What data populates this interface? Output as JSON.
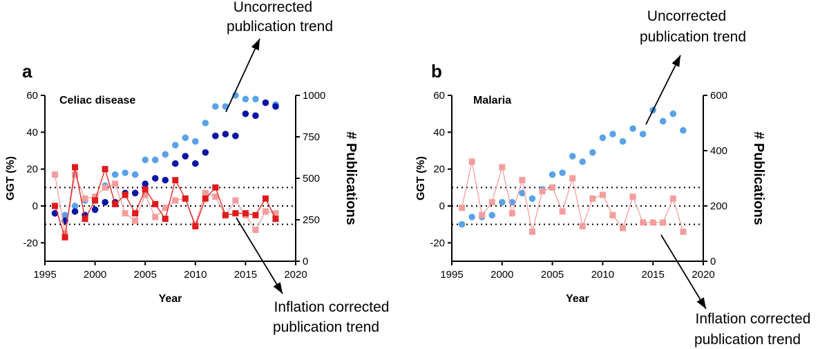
{
  "colors": {
    "light_blue": "#5aa2e8",
    "dark_blue": "#0a16a3",
    "red": "#e01b1b",
    "pink": "#f49d9d"
  },
  "chart_data": [
    {
      "type": "scatter",
      "panel_label": "a",
      "title": "Celiac disease",
      "xlabel": "Year",
      "ylabel": "GGT (%)",
      "ylabel_right": "# Publications",
      "xlim": [
        1995,
        2020
      ],
      "ylim": [
        -30,
        60
      ],
      "ylim_right": [
        0,
        1000
      ],
      "xticks": [
        "1995",
        "2000",
        "2005",
        "2010",
        "2015",
        "2020"
      ],
      "yticks": [
        "-20",
        "0",
        "20",
        "40",
        "60"
      ],
      "yticks_right": [
        "0",
        "250",
        "500",
        "750",
        "1000"
      ],
      "reference_lines": [
        10,
        0,
        -10
      ],
      "annotation_top": [
        "Uncorrected",
        "publication trend"
      ],
      "annotation_bottom": [
        "Inflation corrected",
        "publication trend"
      ],
      "series": [
        {
          "marker": "circle",
          "color": "light_blue",
          "x": [
            1996,
            1997,
            1998,
            1999,
            2000,
            2001,
            2002,
            2003,
            2004,
            2005,
            2006,
            2007,
            2008,
            2009,
            2010,
            2011,
            2012,
            2013,
            2014,
            2015,
            2016,
            2017,
            2018
          ],
          "y": [
            -4,
            -5,
            0,
            3,
            5,
            11,
            17,
            18,
            17,
            25,
            25,
            28,
            33,
            37,
            35,
            45,
            54,
            54,
            60,
            58,
            58,
            56,
            55
          ]
        },
        {
          "marker": "circle",
          "color": "dark_blue",
          "x": [
            1996,
            1997,
            1998,
            1999,
            2000,
            2001,
            2002,
            2003,
            2004,
            2005,
            2006,
            2007,
            2008,
            2009,
            2010,
            2011,
            2012,
            2013,
            2014,
            2015,
            2016,
            2017,
            2018
          ],
          "y": [
            -4,
            -8,
            -3,
            -5,
            -2,
            2,
            2,
            7,
            7,
            12,
            15,
            14,
            23,
            27,
            23,
            29,
            38,
            39,
            38,
            50,
            49,
            56,
            54
          ]
        },
        {
          "marker": "square",
          "color": "pink",
          "line": true,
          "x": [
            1996,
            1997,
            1998,
            1999,
            2000,
            2001,
            2002,
            2003,
            2004,
            2005,
            2006,
            2007,
            2008,
            2009,
            2010,
            2011,
            2012,
            2013,
            2014,
            2015,
            2016,
            2017,
            2018
          ],
          "y": [
            17,
            -15,
            17,
            4,
            5,
            10,
            12,
            -4,
            -8,
            6,
            -6,
            -1,
            3,
            4,
            -10,
            7,
            5,
            -5,
            3,
            -5,
            -13,
            -3,
            -4
          ]
        },
        {
          "marker": "square",
          "color": "red",
          "line": true,
          "x": [
            1996,
            1997,
            1998,
            1999,
            2000,
            2001,
            2002,
            2003,
            2004,
            2005,
            2006,
            2007,
            2008,
            2009,
            2010,
            2011,
            2012,
            2013,
            2014,
            2015,
            2016,
            2017,
            2018
          ],
          "y": [
            0,
            -17,
            21,
            -7,
            3,
            20,
            1,
            6,
            -4,
            9,
            1,
            -7,
            14,
            4,
            -11,
            4,
            10,
            -5,
            -4,
            -4,
            -5,
            4,
            -7
          ]
        }
      ]
    },
    {
      "type": "scatter",
      "panel_label": "b",
      "title": "Malaria",
      "xlabel": "Year",
      "ylabel": "GGT (%)",
      "ylabel_right": "# Publications",
      "xlim": [
        1995,
        2020
      ],
      "ylim": [
        -30,
        60
      ],
      "ylim_right": [
        0,
        600
      ],
      "xticks": [
        "1995",
        "2000",
        "2005",
        "2010",
        "2015",
        "2020"
      ],
      "yticks": [
        "-20",
        "0",
        "20",
        "40",
        "60"
      ],
      "yticks_right": [
        "0",
        "200",
        "400",
        "600"
      ],
      "reference_lines": [
        10,
        0,
        -10
      ],
      "annotation_top": [
        "Uncorrected",
        "publication trend"
      ],
      "annotation_bottom": [
        "Inflation corrected",
        "publication trend"
      ],
      "series": [
        {
          "marker": "circle",
          "color": "light_blue",
          "x": [
            1996,
            1997,
            1998,
            1999,
            2000,
            2001,
            2002,
            2003,
            2004,
            2005,
            2006,
            2007,
            2008,
            2009,
            2010,
            2011,
            2012,
            2013,
            2014,
            2015,
            2016,
            2017,
            2018
          ],
          "y": [
            -10,
            -6,
            -6,
            -5,
            2,
            2,
            7,
            4,
            9,
            17,
            18,
            27,
            24,
            29,
            37,
            39,
            35,
            42,
            39,
            52,
            46,
            50,
            41
          ]
        },
        {
          "marker": "square",
          "color": "pink",
          "line": true,
          "x": [
            1996,
            1997,
            1998,
            1999,
            2000,
            2001,
            2002,
            2003,
            2004,
            2005,
            2006,
            2007,
            2008,
            2009,
            2010,
            2011,
            2012,
            2013,
            2014,
            2015,
            2016,
            2017,
            2018
          ],
          "y": [
            -1,
            24,
            -5,
            2,
            21,
            -4,
            14,
            -14,
            8,
            10,
            -3,
            15,
            -11,
            4,
            6,
            -5,
            -12,
            5,
            -9,
            -9,
            -9,
            4,
            -14
          ]
        }
      ]
    }
  ]
}
